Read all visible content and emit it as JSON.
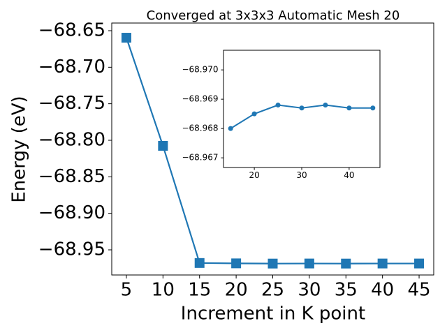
{
  "chart_data": [
    {
      "type": "line",
      "title": "Converged at 3x3x3 Automatic Mesh 20",
      "x_label": "Increment in K point",
      "y_label": "Energy (eV)",
      "x": [
        5,
        10,
        15,
        20,
        25,
        30,
        35,
        40,
        45
      ],
      "series": [
        {
          "color": "#1f77b4",
          "values": [
            -68.6596,
            -68.8076,
            -68.968,
            -68.9685,
            -68.9688,
            -68.9687,
            -68.9688,
            -68.9687,
            -68.9687
          ]
        }
      ],
      "xlim": [
        3,
        47
      ],
      "ylim": [
        -68.9844,
        -68.6395
      ],
      "xticks": [
        5,
        10,
        15,
        20,
        25,
        30,
        35,
        40,
        45
      ],
      "yticks": [
        {
          "value": -68.95,
          "label": "−68.95"
        },
        {
          "value": -68.9,
          "label": "−68.90"
        },
        {
          "value": -68.85,
          "label": "−68.85"
        },
        {
          "value": -68.8,
          "label": "−68.80"
        },
        {
          "value": -68.75,
          "label": "−68.75"
        },
        {
          "value": -68.7,
          "label": "−68.70"
        },
        {
          "value": -68.65,
          "label": "−68.65"
        }
      ]
    },
    {
      "type": "line",
      "x": [
        15,
        20,
        25,
        30,
        35,
        40,
        45
      ],
      "series": [
        {
          "color": "#1f77b4",
          "values": [
            -68.968,
            -68.9685,
            -68.9688,
            -68.9687,
            -68.9688,
            -68.9687,
            -68.9687
          ]
        }
      ],
      "xlim": [
        13.5,
        46.5
      ],
      "ylim": [
        -68.96667,
        -68.97067
      ],
      "xticks": [
        20,
        30,
        40
      ],
      "yticks": [
        {
          "value": -68.97,
          "label": "−68.970"
        },
        {
          "value": -68.969,
          "label": "−68.969"
        },
        {
          "value": -68.968,
          "label": "−68.968"
        },
        {
          "value": -68.967,
          "label": "−68.967"
        }
      ]
    }
  ]
}
